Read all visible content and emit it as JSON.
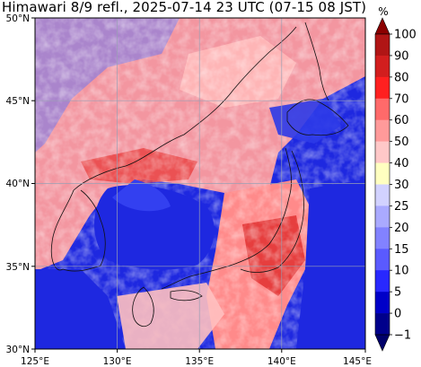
{
  "title": "Himawari 8/9 refl., 2025-07-14 23 UTC (07-15 08 JST)",
  "map": {
    "lat_labels": [
      "50°N",
      "45°N",
      "40°N",
      "35°N",
      "30°N"
    ],
    "lon_labels": [
      "125°E",
      "130°E",
      "135°E",
      "140°E",
      "145°E"
    ]
  },
  "colorbar": {
    "unit": "%",
    "levels": [
      "100",
      "90",
      "80",
      "70",
      "60",
      "50",
      "40",
      "30",
      "25",
      "20",
      "15",
      "10",
      "5",
      "0",
      "−1"
    ],
    "colors": [
      "#8b0000",
      "#b01515",
      "#d21e1e",
      "#ff2020",
      "#ff6a6a",
      "#ff9a9a",
      "#ffc8c8",
      "#ffffc0",
      "#d2d2ff",
      "#aaaaff",
      "#8282ff",
      "#5a5aff",
      "#2828ff",
      "#0000c8",
      "#00008b",
      "#00006a"
    ]
  },
  "colors": {
    "background_cloud_free": "#1e28e0",
    "cloud_low": "#ffb4b4",
    "cloud_high": "#e62828",
    "coast": "#111111",
    "grid": "#9aa0b4"
  }
}
